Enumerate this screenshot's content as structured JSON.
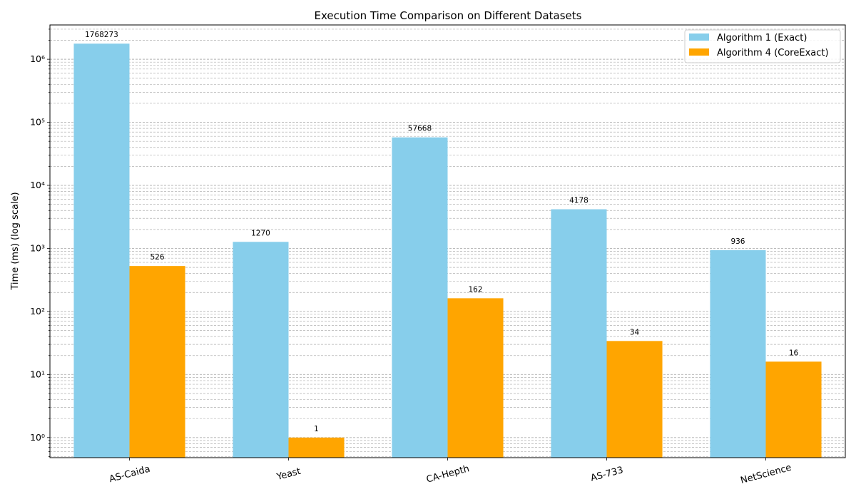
{
  "chart_data": {
    "type": "bar",
    "title": "Execution Time Comparison on Different Datasets",
    "xlabel": "",
    "ylabel": "Time (ms) (log scale)",
    "yscale": "log",
    "ylim": [
      0.48,
      3500000
    ],
    "yticks": [
      {
        "value": 1,
        "label": "10⁰"
      },
      {
        "value": 10,
        "label": "10¹"
      },
      {
        "value": 100,
        "label": "10²"
      },
      {
        "value": 1000,
        "label": "10³"
      },
      {
        "value": 10000,
        "label": "10⁴"
      },
      {
        "value": 100000,
        "label": "10⁵"
      },
      {
        "value": 1000000,
        "label": "10⁶"
      }
    ],
    "grid": true,
    "legend_position": "top-right",
    "categories": [
      "AS-Caida",
      "Yeast",
      "CA-Hepth",
      "AS-733",
      "NetScience"
    ],
    "series": [
      {
        "name": "Algorithm 1 (Exact)",
        "color": "#87ceeb",
        "values": [
          1768273,
          1270,
          57668,
          4178,
          936
        ],
        "labels": [
          "1768273",
          "1270",
          "57668",
          "4178",
          "936"
        ]
      },
      {
        "name": "Algorithm 4 (CoreExact)",
        "color": "#ffa500",
        "values": [
          526,
          1,
          162,
          34,
          16
        ],
        "labels": [
          "526",
          "1",
          "162",
          "34",
          "16"
        ]
      }
    ]
  }
}
